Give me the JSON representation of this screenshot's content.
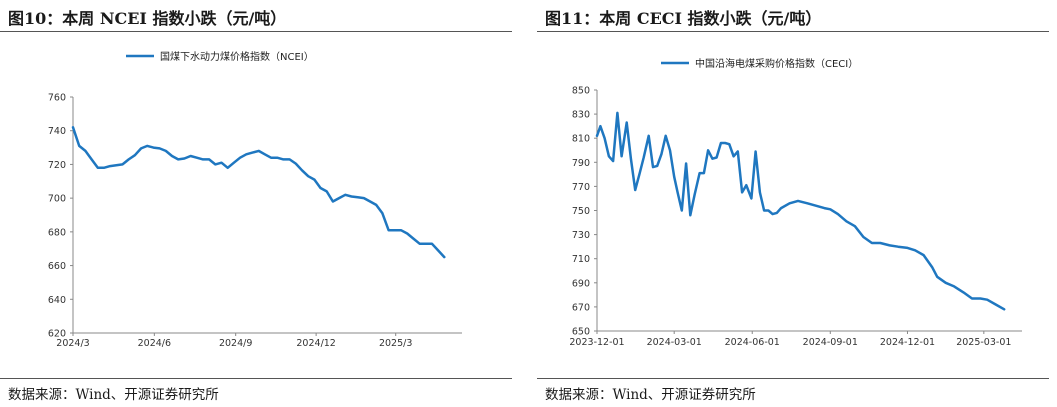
{
  "charts": [
    {
      "figure_title": "图10：本周 NCEI 指数小跌（元/吨）",
      "source": "数据来源：Wind、开源证券研究所",
      "color": "#1f77c0"
    },
    {
      "figure_title": "图11：本周 CECI 指数小跌（元/吨）",
      "source": "数据来源：Wind、开源证券研究所",
      "color": "#1f77c0"
    }
  ],
  "chart_data": [
    {
      "type": "line",
      "title": "图10：本周 NCEI 指数小跌（元/吨）",
      "legend": "国煤下水动力煤价格指数（NCEI）",
      "legend_position": "top-center",
      "grid": false,
      "ylim": [
        620,
        760
      ],
      "yticks": [
        "760",
        "740",
        "720",
        "700",
        "680",
        "660",
        "640",
        "620"
      ],
      "xticks": [
        "2024/3",
        "2024/6",
        "2024/9",
        "2024/12",
        "2025/3"
      ],
      "series": [
        {
          "name": "国煤下水动力煤价格指数（NCEI）",
          "points": [
            [
              "2024-03-01",
              742
            ],
            [
              "2024-03-08",
              731
            ],
            [
              "2024-03-15",
              728
            ],
            [
              "2024-03-22",
              723
            ],
            [
              "2024-03-29",
              718
            ],
            [
              "2024-04-05",
              718
            ],
            [
              "2024-04-12",
              719
            ],
            [
              "2024-04-19",
              719.5
            ],
            [
              "2024-04-26",
              720
            ],
            [
              "2024-05-03",
              723
            ],
            [
              "2024-05-10",
              725.5
            ],
            [
              "2024-05-17",
              729.5
            ],
            [
              "2024-05-24",
              731
            ],
            [
              "2024-05-31",
              730
            ],
            [
              "2024-06-07",
              729.5
            ],
            [
              "2024-06-14",
              728
            ],
            [
              "2024-06-21",
              725
            ],
            [
              "2024-06-28",
              723
            ],
            [
              "2024-07-05",
              723.5
            ],
            [
              "2024-07-12",
              725
            ],
            [
              "2024-07-19",
              724
            ],
            [
              "2024-07-26",
              723
            ],
            [
              "2024-08-02",
              723
            ],
            [
              "2024-08-09",
              720
            ],
            [
              "2024-08-16",
              721
            ],
            [
              "2024-08-23",
              718
            ],
            [
              "2024-08-30",
              721
            ],
            [
              "2024-09-06",
              724
            ],
            [
              "2024-09-13",
              726
            ],
            [
              "2024-09-20",
              727
            ],
            [
              "2024-09-27",
              728
            ],
            [
              "2024-10-04",
              726
            ],
            [
              "2024-10-11",
              724
            ],
            [
              "2024-10-18",
              724
            ],
            [
              "2024-10-25",
              723
            ],
            [
              "2024-11-01",
              723
            ],
            [
              "2024-11-08",
              720.5
            ],
            [
              "2024-11-15",
              716.5
            ],
            [
              "2024-11-22",
              713
            ],
            [
              "2024-11-29",
              711
            ],
            [
              "2024-12-06",
              706
            ],
            [
              "2024-12-13",
              704
            ],
            [
              "2024-12-20",
              698
            ],
            [
              "2024-12-27",
              700
            ],
            [
              "2025-01-03",
              702
            ],
            [
              "2025-01-10",
              701
            ],
            [
              "2025-01-17",
              700.5
            ],
            [
              "2025-01-24",
              700
            ],
            [
              "2025-01-31",
              698
            ],
            [
              "2025-02-07",
              696
            ],
            [
              "2025-02-14",
              691
            ],
            [
              "2025-02-21",
              681
            ],
            [
              "2025-02-28",
              681
            ],
            [
              "2025-03-07",
              681
            ],
            [
              "2025-03-14",
              679
            ],
            [
              "2025-03-21",
              676
            ],
            [
              "2025-03-28",
              673
            ],
            [
              "2025-04-04",
              673
            ],
            [
              "2025-04-11",
              673
            ],
            [
              "2025-04-18",
              669
            ],
            [
              "2025-04-25",
              665
            ]
          ]
        }
      ]
    },
    {
      "type": "line",
      "title": "图11：本周 CECI 指数小跌（元/吨）",
      "legend": "中国沿海电煤采购价格指数（CECI）",
      "legend_position": "top-center",
      "grid": false,
      "ylim": [
        650,
        850
      ],
      "yticks": [
        "850",
        "830",
        "810",
        "790",
        "770",
        "750",
        "730",
        "710",
        "690",
        "670",
        "650"
      ],
      "xticks": [
        "2023-12-01",
        "2024-03-01",
        "2024-06-01",
        "2024-09-01",
        "2024-12-01",
        "2025-03-01"
      ],
      "series": [
        {
          "name": "中国沿海电煤采购价格指数（CECI）",
          "points": [
            [
              "2023-12-01",
              812
            ],
            [
              "2023-12-05",
              820
            ],
            [
              "2023-12-10",
              810
            ],
            [
              "2023-12-15",
              795
            ],
            [
              "2023-12-20",
              791
            ],
            [
              "2023-12-25",
              831
            ],
            [
              "2023-12-30",
              795
            ],
            [
              "2024-01-05",
              823
            ],
            [
              "2024-01-10",
              793
            ],
            [
              "2024-01-15",
              767
            ],
            [
              "2024-01-20",
              780
            ],
            [
              "2024-01-25",
              794
            ],
            [
              "2024-01-31",
              812
            ],
            [
              "2024-02-05",
              786
            ],
            [
              "2024-02-10",
              787
            ],
            [
              "2024-02-15",
              797
            ],
            [
              "2024-02-20",
              812
            ],
            [
              "2024-02-25",
              800
            ],
            [
              "2024-03-01",
              778
            ],
            [
              "2024-03-05",
              765
            ],
            [
              "2024-03-10",
              750
            ],
            [
              "2024-03-15",
              789
            ],
            [
              "2024-03-20",
              746
            ],
            [
              "2024-03-25",
              763
            ],
            [
              "2024-03-31",
              781
            ],
            [
              "2024-04-05",
              781
            ],
            [
              "2024-04-10",
              800
            ],
            [
              "2024-04-15",
              793
            ],
            [
              "2024-04-20",
              794
            ],
            [
              "2024-04-25",
              806
            ],
            [
              "2024-04-30",
              806
            ],
            [
              "2024-05-05",
              805
            ],
            [
              "2024-05-10",
              795
            ],
            [
              "2024-05-15",
              799
            ],
            [
              "2024-05-20",
              765
            ],
            [
              "2024-05-25",
              771
            ],
            [
              "2024-05-31",
              760
            ],
            [
              "2024-06-05",
              799
            ],
            [
              "2024-06-10",
              765
            ],
            [
              "2024-06-15",
              750
            ],
            [
              "2024-06-20",
              750
            ],
            [
              "2024-06-25",
              747
            ],
            [
              "2024-06-30",
              748
            ],
            [
              "2024-07-05",
              752
            ],
            [
              "2024-07-15",
              756
            ],
            [
              "2024-07-25",
              758
            ],
            [
              "2024-08-05",
              756
            ],
            [
              "2024-08-15",
              754
            ],
            [
              "2024-08-25",
              752
            ],
            [
              "2024-09-01",
              751
            ],
            [
              "2024-09-10",
              747
            ],
            [
              "2024-09-20",
              741
            ],
            [
              "2024-09-30",
              737
            ],
            [
              "2024-10-10",
              728
            ],
            [
              "2024-10-20",
              723
            ],
            [
              "2024-10-30",
              723
            ],
            [
              "2024-11-10",
              721
            ],
            [
              "2024-11-20",
              720
            ],
            [
              "2024-12-01",
              719
            ],
            [
              "2024-12-10",
              717
            ],
            [
              "2024-12-20",
              713
            ],
            [
              "2024-12-30",
              703
            ],
            [
              "2025-01-05",
              695
            ],
            [
              "2025-01-15",
              690
            ],
            [
              "2025-01-25",
              687
            ],
            [
              "2025-02-05",
              682
            ],
            [
              "2025-02-15",
              677
            ],
            [
              "2025-02-25",
              677
            ],
            [
              "2025-03-05",
              676
            ],
            [
              "2025-03-15",
              672
            ],
            [
              "2025-03-25",
              668
            ]
          ]
        }
      ]
    }
  ]
}
